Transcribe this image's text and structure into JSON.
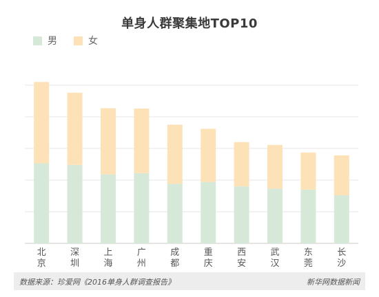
{
  "chart_data": {
    "type": "bar",
    "stacked": true,
    "title": "单身人群聚集地TOP10",
    "categories": [
      "北京",
      "深圳",
      "上海",
      "广州",
      "成都",
      "重庆",
      "西安",
      "武汉",
      "东莞",
      "长沙"
    ],
    "series": [
      {
        "name": "男",
        "color": "#d6e9d8",
        "values": [
          253,
          248,
          218,
          222,
          188,
          194,
          180,
          173,
          170,
          152
        ]
      },
      {
        "name": "女",
        "color": "#fde2b7",
        "values": [
          257,
          228,
          209,
          204,
          187,
          168,
          140,
          138,
          117,
          126
        ]
      }
    ],
    "ylim": [
      0,
      530
    ],
    "gridlines": [
      100,
      200,
      300,
      400,
      500
    ],
    "grid": true,
    "legend_position": "top-left",
    "xlabel": "",
    "ylabel": ""
  },
  "footer": {
    "source": "数据来源：珍爱网《2016单身人群调查报告》",
    "brand": "新华网数据新闻"
  },
  "colors": {
    "grid": "#e6e6e6",
    "axis": "#c8c8c8",
    "footer_bg": "#ededed"
  }
}
